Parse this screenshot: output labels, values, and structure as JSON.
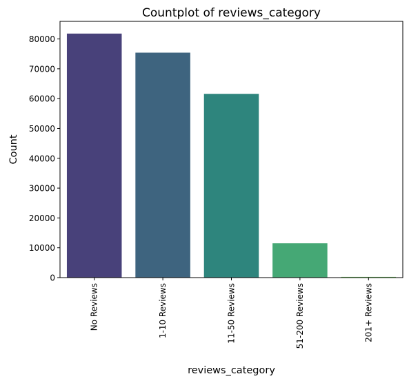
{
  "chart_data": {
    "type": "bar",
    "title": "Countplot of reviews_category",
    "xlabel": "reviews_category",
    "ylabel": "Count",
    "categories": [
      "No Reviews",
      "1-10 Reviews",
      "11-50 Reviews",
      "51-200 Reviews",
      "201+ Reviews"
    ],
    "values": [
      81800,
      75400,
      61600,
      11500,
      250
    ],
    "colors": [
      "#48417a",
      "#3e647f",
      "#2e857d",
      "#45a875",
      "#6ccd5a"
    ],
    "yticks": [
      0,
      10000,
      20000,
      30000,
      40000,
      50000,
      60000,
      70000,
      80000
    ],
    "ylim": [
      0,
      85900
    ],
    "grid": false,
    "legend": "none"
  }
}
